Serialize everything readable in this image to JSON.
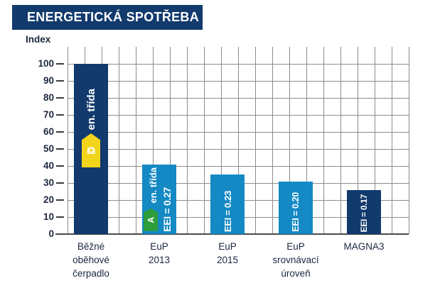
{
  "title": "ENERGETICKÁ SPOTŘEBA",
  "axis_label": "Index",
  "colors": {
    "navy": "#123a6d",
    "light_blue": "#1489c4",
    "yellow": "#f2d41b",
    "green": "#2e9e3c",
    "gridline": "#8c8c8c",
    "axis_text": "#1b2740",
    "white": "#ffffff"
  },
  "chart_data": {
    "type": "bar",
    "title": "ENERGETICKÁ SPOTŘEBA",
    "ylabel": "Index",
    "ylim": [
      0,
      110
    ],
    "yticks": [
      0,
      10,
      20,
      30,
      40,
      50,
      60,
      70,
      80,
      90,
      100
    ],
    "grid": true,
    "legend": "none",
    "categories": [
      "Běžné oběhové čerpadlo",
      "EuP 2013",
      "EuP 2015",
      "EuP srovnávací úroveň",
      "MAGNA3"
    ],
    "values": [
      100,
      41,
      35,
      31,
      26
    ],
    "bars": [
      {
        "label_lines": [
          "Běžné",
          "oběhové",
          "čerpadlo"
        ],
        "value": 100,
        "color": "#123a6d",
        "inner_label": "en. třída",
        "energy_class": "D",
        "energy_class_color": "#f2d41b",
        "eei": null,
        "annotation_layout": "center"
      },
      {
        "label_lines": [
          "EuP",
          "2013"
        ],
        "value": 41,
        "color": "#1489c4",
        "inner_label": "en. třída",
        "energy_class": "A",
        "energy_class_color": "#2e9e3c",
        "eei": "EEI = 0.27",
        "annotation_layout": "split"
      },
      {
        "label_lines": [
          "EuP",
          "2015"
        ],
        "value": 35,
        "color": "#1489c4",
        "inner_label": null,
        "energy_class": null,
        "energy_class_color": null,
        "eei": "EEI = 0.23",
        "annotation_layout": "bottom"
      },
      {
        "label_lines": [
          "EuP",
          "srovnávací",
          "úroveň"
        ],
        "value": 31,
        "color": "#1489c4",
        "inner_label": null,
        "energy_class": null,
        "energy_class_color": null,
        "eei": "EEI = 0.20",
        "annotation_layout": "bottom"
      },
      {
        "label_lines": [
          "MAGNA3"
        ],
        "value": 26,
        "color": "#123a6d",
        "inner_label": null,
        "energy_class": null,
        "energy_class_color": null,
        "eei": "EEI = 0.17",
        "annotation_layout": "bottom"
      }
    ]
  }
}
